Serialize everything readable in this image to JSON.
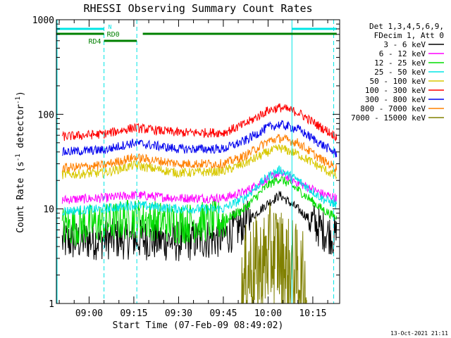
{
  "chart_data": {
    "type": "line",
    "title": "RHESSI Observing Summary Count Rates",
    "xlabel": "Start Time (07-Feb-09 08:49:02)",
    "ylabel": "Count Rate (s⁻¹ detector⁻¹)",
    "ylabel_parts": {
      "main": "Count Rate (s",
      "exp1": "-1",
      "mid": " detector",
      "exp2": "-1",
      "end": ")"
    },
    "yscale": "log",
    "xlim": [
      "08:49:02",
      "10:24:00"
    ],
    "ylim": [
      1,
      1000
    ],
    "x_ticks": [
      "09:00",
      "09:15",
      "09:30",
      "09:45",
      "10:00",
      "10:15"
    ],
    "y_ticks": [
      "1",
      "10",
      "100",
      "1000"
    ],
    "grid": false,
    "legend": {
      "placement": "right",
      "header": [
        "Det 1,3,4,5,6,9,",
        "FDecim 1, Att 0"
      ]
    },
    "series": [
      {
        "name": "3 - 6 keV",
        "color": "#000000",
        "values": [
          [
            "08:51",
            4.5
          ],
          [
            "09:05",
            4.8
          ],
          [
            "09:15",
            4.8
          ],
          [
            "09:30",
            4.5
          ],
          [
            "09:45",
            5.0
          ],
          [
            "09:52",
            7.0
          ],
          [
            "10:00",
            11.5
          ],
          [
            "10:04",
            14.0
          ],
          [
            "10:10",
            10.0
          ],
          [
            "10:18",
            6.0
          ],
          [
            "10:23",
            5.0
          ]
        ]
      },
      {
        "name": "6 - 12 keV",
        "color": "#ff00ff",
        "values": [
          [
            "08:51",
            12.5
          ],
          [
            "09:05",
            13.0
          ],
          [
            "09:15",
            14.0
          ],
          [
            "09:30",
            13.0
          ],
          [
            "09:45",
            13.0
          ],
          [
            "09:52",
            15.0
          ],
          [
            "10:00",
            21.0
          ],
          [
            "10:04",
            24.0
          ],
          [
            "10:10",
            19.0
          ],
          [
            "10:18",
            14.5
          ],
          [
            "10:23",
            13.0
          ]
        ]
      },
      {
        "name": "12 - 25 keV",
        "color": "#00dd00",
        "values": [
          [
            "08:51",
            6.5
          ],
          [
            "09:05",
            7.0
          ],
          [
            "09:15",
            8.0
          ],
          [
            "09:30",
            7.0
          ],
          [
            "09:45",
            7.5
          ],
          [
            "09:52",
            10.0
          ],
          [
            "10:00",
            18.0
          ],
          [
            "10:04",
            21.0
          ],
          [
            "10:10",
            16.0
          ],
          [
            "10:18",
            10.0
          ],
          [
            "10:23",
            8.0
          ]
        ]
      },
      {
        "name": "25 - 50 keV",
        "color": "#00e5e5",
        "values": [
          [
            "08:51",
            9.5
          ],
          [
            "09:05",
            10.0
          ],
          [
            "09:15",
            11.0
          ],
          [
            "09:30",
            10.0
          ],
          [
            "09:45",
            10.0
          ],
          [
            "09:52",
            13.0
          ],
          [
            "10:00",
            22.0
          ],
          [
            "10:04",
            26.0
          ],
          [
            "10:10",
            20.0
          ],
          [
            "10:18",
            13.0
          ],
          [
            "10:23",
            11.0
          ]
        ]
      },
      {
        "name": "50 - 100 keV",
        "color": "#d8c800",
        "values": [
          [
            "08:51",
            23.0
          ],
          [
            "09:05",
            24.0
          ],
          [
            "09:15",
            29.0
          ],
          [
            "09:30",
            24.0
          ],
          [
            "09:45",
            25.0
          ],
          [
            "09:52",
            30.0
          ],
          [
            "10:00",
            40.0
          ],
          [
            "10:04",
            44.0
          ],
          [
            "10:10",
            38.0
          ],
          [
            "10:18",
            27.0
          ],
          [
            "10:23",
            22.0
          ]
        ]
      },
      {
        "name": "100 - 300 keV",
        "color": "#ff0000",
        "values": [
          [
            "08:51",
            58.0
          ],
          [
            "09:05",
            62.0
          ],
          [
            "09:15",
            72.0
          ],
          [
            "09:30",
            64.0
          ],
          [
            "09:45",
            64.0
          ],
          [
            "09:52",
            78.0
          ],
          [
            "10:00",
            110.0
          ],
          [
            "10:04",
            118.0
          ],
          [
            "10:10",
            105.0
          ],
          [
            "10:18",
            72.0
          ],
          [
            "10:23",
            58.0
          ]
        ]
      },
      {
        "name": "300 - 800 keV",
        "color": "#0000ee",
        "values": [
          [
            "08:51",
            40.0
          ],
          [
            "09:05",
            42.0
          ],
          [
            "09:15",
            50.0
          ],
          [
            "09:30",
            43.0
          ],
          [
            "09:45",
            43.0
          ],
          [
            "09:52",
            52.0
          ],
          [
            "10:00",
            73.0
          ],
          [
            "10:04",
            78.0
          ],
          [
            "10:10",
            70.0
          ],
          [
            "10:18",
            48.0
          ],
          [
            "10:23",
            38.0
          ]
        ]
      },
      {
        "name": "800 - 7000 keV",
        "color": "#ff8000",
        "values": [
          [
            "08:51",
            27.0
          ],
          [
            "09:05",
            29.0
          ],
          [
            "09:15",
            35.0
          ],
          [
            "09:30",
            30.0
          ],
          [
            "09:45",
            30.0
          ],
          [
            "09:52",
            36.0
          ],
          [
            "10:00",
            52.0
          ],
          [
            "10:04",
            56.0
          ],
          [
            "10:10",
            50.0
          ],
          [
            "10:18",
            33.0
          ],
          [
            "10:23",
            27.0
          ]
        ]
      },
      {
        "name": "7000 - 15000 keV",
        "color": "#808000",
        "values": [
          [
            "09:51",
            1.0
          ],
          [
            "09:53",
            2.3
          ],
          [
            "09:58",
            2.4
          ],
          [
            "10:00",
            3.2
          ],
          [
            "10:03",
            3.5
          ],
          [
            "10:06",
            2.4
          ],
          [
            "10:08",
            2.3
          ],
          [
            "10:12",
            1.6
          ],
          [
            "10:13",
            1.0
          ]
        ]
      }
    ],
    "annotations": {
      "dashed_vlines": [
        "09:05",
        "09:16",
        "10:22"
      ],
      "solid_vlines": [
        "10:08"
      ],
      "flag_bars": [
        {
          "label": "N",
          "color": "#00e5e5",
          "segments": [
            [
              "08:49:02",
              "09:05"
            ],
            [
              "10:08",
              "10:23"
            ]
          ]
        },
        {
          "label": "RD0",
          "color": "#008000",
          "segments": [
            [
              "08:49:02",
              "09:05"
            ],
            [
              "09:18",
              "10:23"
            ]
          ]
        },
        {
          "label": "RD4",
          "color": "#008000",
          "segments": [
            [
              "09:05",
              "09:16"
            ]
          ]
        }
      ]
    },
    "timestamp": "13-Oct-2021 21:11"
  }
}
